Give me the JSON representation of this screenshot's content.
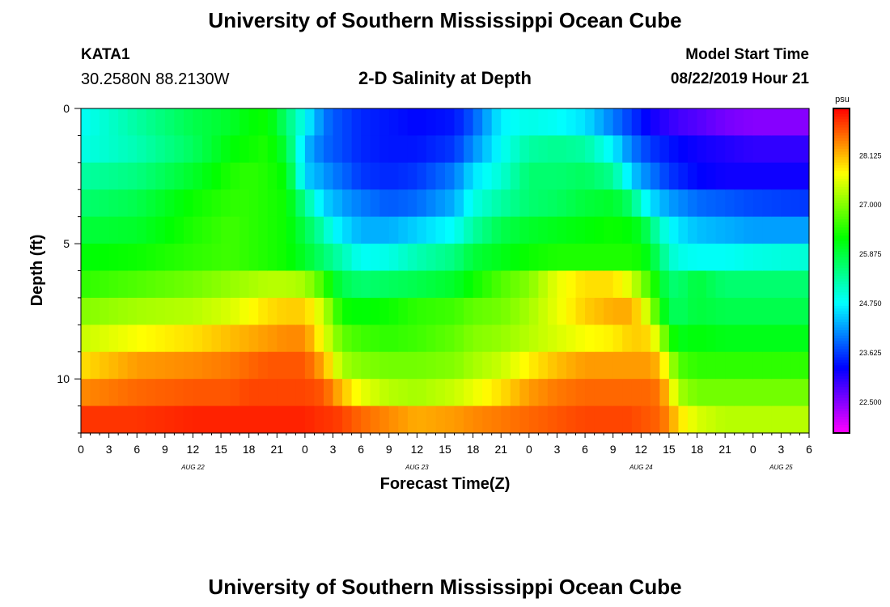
{
  "header": {
    "title": "University of Southern Mississippi Ocean Cube",
    "station_id": "KATA1",
    "coords": "30.2580N 88.2130W",
    "plot_title": "2-D Salinity at Depth",
    "model_label": "Model Start Time",
    "model_time": "08/22/2019 Hour 21"
  },
  "footer": {
    "title": "University of Southern Mississippi Ocean Cube"
  },
  "chart_data": {
    "type": "heatmap",
    "title": "2-D Salinity at Depth",
    "xlabel": "Forecast Time(Z)",
    "ylabel": "Depth (ft)",
    "x_range_hours": [
      0,
      78
    ],
    "y_range": [
      0,
      12
    ],
    "x_tick_labels": [
      "0",
      "3",
      "6",
      "9",
      "12",
      "15",
      "18",
      "21",
      "0",
      "3",
      "6",
      "9",
      "12",
      "15",
      "18",
      "21",
      "0",
      "3",
      "6",
      "9",
      "12",
      "15",
      "18",
      "21",
      "0",
      "3",
      "6"
    ],
    "y_tick_values": [
      0,
      5,
      10
    ],
    "y_tick_labels": [
      "0",
      "5",
      "10"
    ],
    "date_labels": [
      {
        "label": "AUG 22",
        "hour": 12
      },
      {
        "label": "AUG 23",
        "hour": 36
      },
      {
        "label": "AUG 24",
        "hour": 60
      },
      {
        "label": "AUG 25",
        "hour": 75
      }
    ],
    "colorbar": {
      "unit": "psu",
      "range": [
        21.8,
        29.2
      ],
      "tick_values": [
        22.5,
        23.625,
        24.75,
        25.875,
        27.0,
        28.125
      ],
      "tick_labels": [
        "22.500",
        "23.625",
        "24.750",
        "25.875",
        "27.000",
        "28.125"
      ]
    },
    "depth_levels": [
      0.5,
      1.5,
      2.5,
      3.5,
      4.5,
      5.5,
      6.5,
      7.5,
      8.5,
      9.5,
      10.5,
      11.5
    ],
    "profile_hours": [
      0,
      6,
      12,
      16,
      18,
      20,
      22,
      24,
      26,
      27,
      28,
      30,
      33,
      36,
      40,
      42,
      45,
      48,
      51,
      54,
      57,
      59,
      60,
      61,
      62,
      63,
      64,
      66,
      69,
      72,
      78
    ],
    "profiles": [
      [
        24.8,
        24.9,
        25.3,
        25.6,
        25.9,
        26.2,
        26.5,
        27.0,
        27.4,
        27.9,
        28.4,
        28.9
      ],
      [
        25.3,
        25.2,
        25.5,
        25.8,
        26.0,
        26.3,
        26.7,
        27.2,
        27.7,
        28.3,
        28.6,
        28.9
      ],
      [
        25.8,
        25.7,
        26.0,
        26.3,
        26.4,
        26.5,
        26.9,
        27.3,
        27.9,
        28.4,
        28.7,
        29.0
      ],
      [
        26.0,
        26.2,
        26.4,
        26.5,
        26.6,
        26.6,
        27.1,
        27.5,
        28.1,
        28.5,
        28.7,
        29.0
      ],
      [
        26.2,
        26.3,
        26.5,
        26.5,
        26.5,
        26.5,
        27.2,
        27.7,
        28.2,
        28.6,
        28.8,
        29.0
      ],
      [
        26.3,
        26.4,
        26.4,
        26.4,
        26.4,
        26.4,
        27.3,
        27.9,
        28.3,
        28.7,
        28.8,
        29.0
      ],
      [
        25.6,
        25.9,
        26.2,
        26.3,
        26.3,
        26.3,
        27.3,
        28.0,
        28.4,
        28.7,
        28.8,
        29.0
      ],
      [
        24.8,
        24.4,
        24.5,
        25.4,
        25.8,
        26.0,
        27.2,
        28.0,
        28.4,
        28.7,
        28.8,
        29.0
      ],
      [
        24.0,
        23.9,
        24.2,
        24.5,
        25.2,
        25.6,
        26.6,
        27.4,
        27.6,
        28.2,
        28.7,
        28.9
      ],
      [
        23.8,
        23.8,
        24.0,
        24.4,
        24.8,
        25.4,
        26.1,
        26.8,
        27.2,
        27.7,
        28.4,
        28.9
      ],
      [
        23.7,
        23.7,
        23.9,
        24.2,
        24.6,
        25.2,
        25.8,
        26.3,
        26.8,
        27.2,
        28.1,
        28.8
      ],
      [
        23.5,
        23.5,
        23.6,
        24.0,
        24.3,
        24.8,
        25.6,
        26.2,
        26.6,
        27.0,
        27.6,
        28.6
      ],
      [
        23.4,
        23.4,
        23.5,
        23.8,
        24.3,
        24.9,
        25.7,
        26.3,
        26.5,
        26.9,
        27.3,
        28.4
      ],
      [
        23.3,
        23.4,
        23.6,
        23.9,
        24.5,
        25.2,
        25.8,
        26.5,
        26.6,
        26.9,
        27.2,
        28.2
      ],
      [
        23.4,
        23.6,
        24.0,
        24.3,
        24.8,
        25.5,
        26.0,
        26.6,
        26.8,
        27.0,
        27.4,
        28.3
      ],
      [
        23.8,
        24.1,
        24.6,
        24.9,
        25.3,
        25.9,
        26.3,
        26.8,
        27.0,
        27.2,
        27.6,
        28.4
      ],
      [
        24.7,
        24.8,
        25.0,
        25.3,
        25.8,
        26.1,
        26.7,
        26.9,
        27.1,
        27.4,
        27.9,
        28.5
      ],
      [
        24.9,
        25.3,
        25.6,
        25.6,
        26.0,
        26.3,
        27.0,
        27.2,
        27.3,
        27.8,
        28.3,
        28.6
      ],
      [
        24.8,
        25.4,
        25.6,
        25.7,
        26.1,
        26.4,
        27.6,
        27.6,
        27.5,
        28.1,
        28.5,
        28.7
      ],
      [
        24.6,
        25.3,
        25.7,
        25.9,
        26.2,
        26.4,
        27.9,
        28.0,
        27.7,
        28.3,
        28.6,
        28.8
      ],
      [
        24.0,
        24.7,
        25.4,
        26.0,
        26.3,
        26.4,
        27.9,
        28.2,
        27.8,
        28.3,
        28.6,
        28.8
      ],
      [
        23.6,
        24.0,
        24.5,
        25.6,
        26.2,
        26.4,
        27.5,
        28.2,
        28.0,
        28.3,
        28.6,
        28.8
      ],
      [
        23.4,
        23.8,
        24.2,
        25.0,
        26.0,
        26.3,
        27.0,
        27.8,
        28.0,
        28.3,
        28.6,
        28.7
      ],
      [
        23.2,
        23.6,
        24.0,
        24.6,
        25.6,
        26.0,
        26.6,
        27.2,
        27.9,
        28.3,
        28.6,
        28.7
      ],
      [
        23.1,
        23.5,
        23.8,
        24.4,
        25.1,
        25.6,
        26.1,
        26.4,
        27.3,
        28.1,
        28.5,
        28.6
      ],
      [
        23.0,
        23.4,
        23.6,
        24.2,
        24.8,
        25.1,
        25.6,
        25.8,
        26.5,
        27.4,
        28.0,
        28.4
      ],
      [
        22.9,
        23.3,
        23.5,
        24.1,
        24.6,
        24.9,
        25.6,
        25.7,
        26.1,
        26.7,
        27.2,
        27.9
      ],
      [
        22.8,
        23.2,
        23.3,
        23.9,
        24.4,
        24.8,
        25.9,
        25.9,
        26.2,
        26.5,
        26.9,
        27.5
      ],
      [
        22.6,
        23.1,
        23.2,
        23.8,
        24.3,
        24.8,
        25.6,
        25.8,
        26.1,
        26.5,
        26.9,
        27.3
      ],
      [
        22.5,
        23.0,
        23.2,
        23.7,
        24.2,
        24.9,
        25.6,
        25.8,
        26.1,
        26.5,
        26.9,
        27.3
      ],
      [
        22.5,
        23.0,
        23.2,
        23.6,
        24.2,
        25.0,
        25.6,
        25.8,
        26.1,
        26.5,
        26.9,
        27.3
      ]
    ]
  }
}
